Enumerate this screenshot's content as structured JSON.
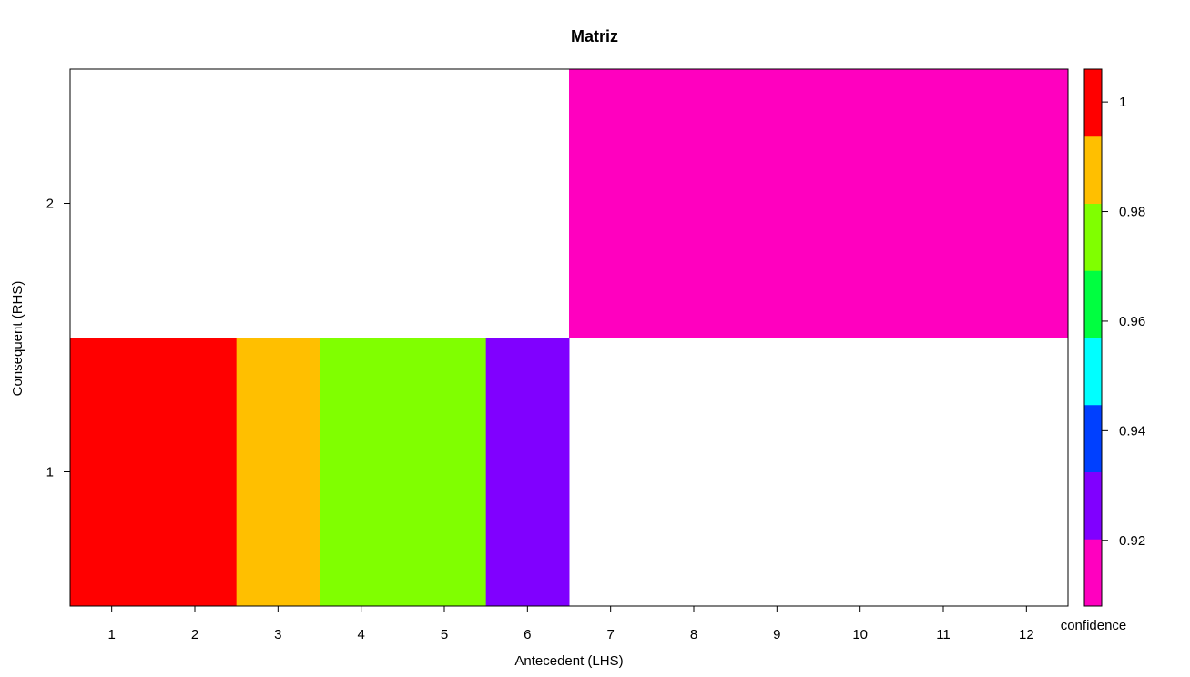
{
  "chart_data": {
    "type": "heatmap",
    "title": "Matriz",
    "xlabel": "Antecedent (LHS)",
    "ylabel": "Consequent (RHS)",
    "x_categories": [
      "1",
      "2",
      "3",
      "4",
      "5",
      "6",
      "7",
      "8",
      "9",
      "10",
      "11",
      "12"
    ],
    "y_categories": [
      "1",
      "2"
    ],
    "cells": [
      {
        "x": 1,
        "y": 1,
        "value": 1.0,
        "color": "#FF0000"
      },
      {
        "x": 2,
        "y": 1,
        "value": 1.0,
        "color": "#FF0000"
      },
      {
        "x": 3,
        "y": 1,
        "value": 0.99,
        "color": "#FFBF00"
      },
      {
        "x": 4,
        "y": 1,
        "value": 0.98,
        "color": "#80FF00"
      },
      {
        "x": 5,
        "y": 1,
        "value": 0.98,
        "color": "#80FF00"
      },
      {
        "x": 6,
        "y": 1,
        "value": 0.925,
        "color": "#8000FF"
      },
      {
        "x": 7,
        "y": 2,
        "value": 0.913,
        "color": "#FF00BF"
      },
      {
        "x": 8,
        "y": 2,
        "value": 0.913,
        "color": "#FF00BF"
      },
      {
        "x": 9,
        "y": 2,
        "value": 0.913,
        "color": "#FF00BF"
      },
      {
        "x": 10,
        "y": 2,
        "value": 0.913,
        "color": "#FF00BF"
      },
      {
        "x": 11,
        "y": 2,
        "value": 0.913,
        "color": "#FF00BF"
      },
      {
        "x": 12,
        "y": 2,
        "value": 0.913,
        "color": "#FF00BF"
      }
    ],
    "legend": {
      "title": "confidence",
      "placement": "right",
      "range": [
        0.908,
        1.006
      ],
      "bands": [
        "#FF00BF",
        "#8000FF",
        "#0040FF",
        "#00FFFF",
        "#00FF40",
        "#80FF00",
        "#FFBF00",
        "#FF0000"
      ],
      "ticks": [
        {
          "value": 0.92,
          "label": "0.92"
        },
        {
          "value": 0.94,
          "label": "0.94"
        },
        {
          "value": 0.96,
          "label": "0.96"
        },
        {
          "value": 0.98,
          "label": "0.98"
        },
        {
          "value": 1.0,
          "label": "1"
        }
      ]
    },
    "grid": false
  }
}
